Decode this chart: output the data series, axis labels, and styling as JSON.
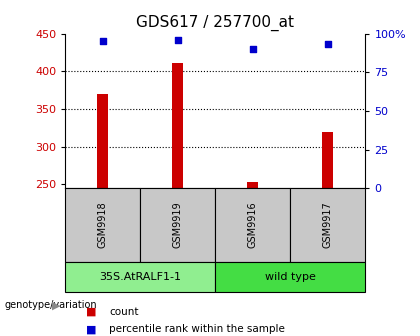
{
  "title": "GDS617 / 257700_at",
  "samples": [
    "GSM9918",
    "GSM9919",
    "GSM9916",
    "GSM9917"
  ],
  "counts": [
    370,
    411,
    253,
    320
  ],
  "percentiles": [
    95,
    96,
    90,
    93
  ],
  "groups": [
    {
      "label": "35S.AtRALF1-1",
      "indices": [
        0,
        1
      ],
      "color": "#90EE90"
    },
    {
      "label": "wild type",
      "indices": [
        2,
        3
      ],
      "color": "#44DD44"
    }
  ],
  "ylim_left": [
    245,
    450
  ],
  "ylim_right": [
    0,
    100
  ],
  "yticks_left": [
    250,
    300,
    350,
    400,
    450
  ],
  "yticks_right": [
    0,
    25,
    50,
    75,
    100
  ],
  "bar_color": "#CC0000",
  "scatter_color": "#0000CC",
  "xlabel_box_color": "#C8C8C8",
  "title_fontsize": 11,
  "tick_fontsize": 8,
  "bar_width": 0.15,
  "legend_bar_color": "#CC0000",
  "legend_scatter_color": "#0000CC"
}
